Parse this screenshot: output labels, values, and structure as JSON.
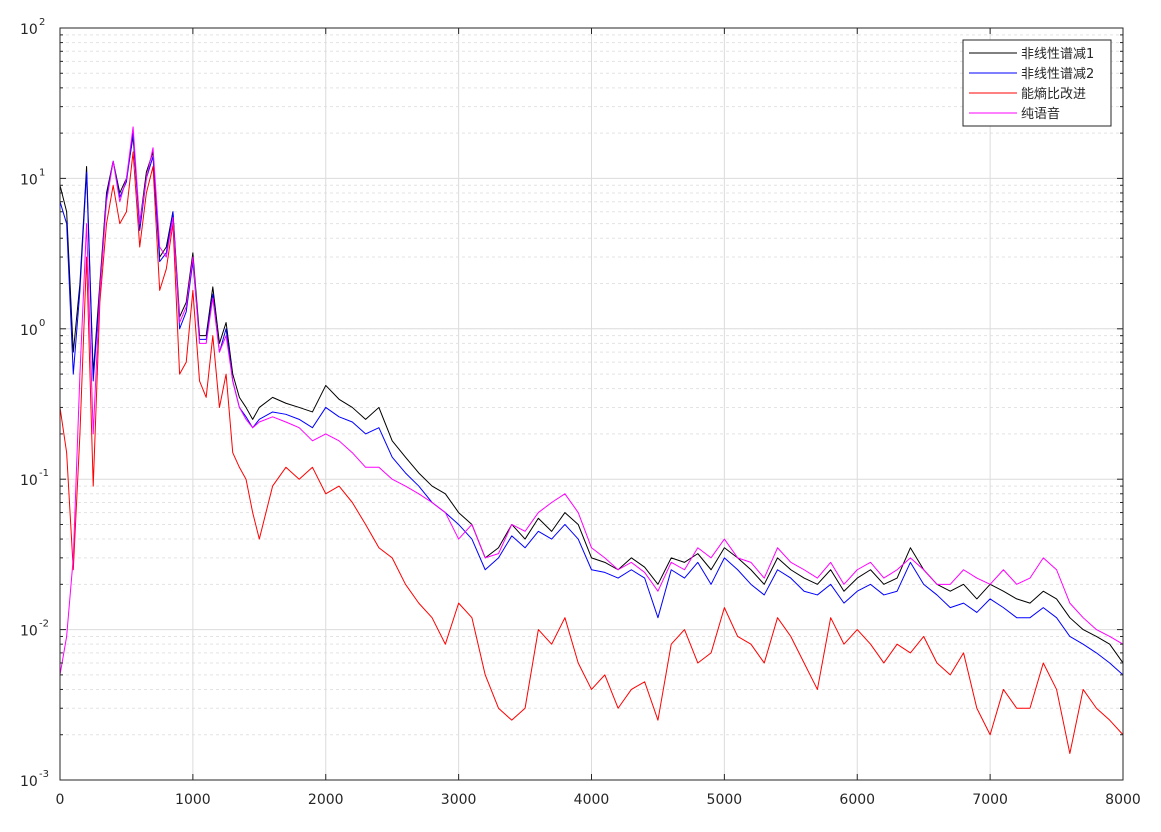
{
  "chart_data": {
    "type": "line",
    "title": "",
    "xlabel": "",
    "ylabel": "",
    "xscale": "linear",
    "yscale": "log",
    "xlim": [
      0,
      8000
    ],
    "ylim": [
      0.001,
      100
    ],
    "grid": true,
    "minor_grid": true,
    "legend_position": "top-right",
    "x_ticks": [
      0,
      1000,
      2000,
      3000,
      4000,
      5000,
      6000,
      7000,
      8000
    ],
    "x_tick_labels": [
      "0",
      "1000",
      "2000",
      "3000",
      "4000",
      "5000",
      "6000",
      "7000",
      "8000"
    ],
    "y_ticks": [
      0.001,
      0.01,
      0.1,
      1,
      10,
      100
    ],
    "y_tick_labels": [
      {
        "base": "10",
        "exp": "-3"
      },
      {
        "base": "10",
        "exp": "-2"
      },
      {
        "base": "10",
        "exp": "-1"
      },
      {
        "base": "10",
        "exp": "0"
      },
      {
        "base": "10",
        "exp": "1"
      },
      {
        "base": "10",
        "exp": "2"
      }
    ],
    "series": [
      {
        "name": "非线性谱减1",
        "color": "#000000",
        "x": [
          0,
          50,
          100,
          150,
          200,
          250,
          300,
          350,
          400,
          450,
          500,
          550,
          600,
          650,
          700,
          750,
          800,
          850,
          900,
          950,
          1000,
          1050,
          1100,
          1150,
          1200,
          1250,
          1300,
          1350,
          1400,
          1450,
          1500,
          1600,
          1700,
          1800,
          1900,
          2000,
          2100,
          2200,
          2300,
          2400,
          2500,
          2600,
          2700,
          2800,
          2900,
          3000,
          3100,
          3200,
          3300,
          3400,
          3500,
          3600,
          3700,
          3800,
          3900,
          4000,
          4100,
          4200,
          4300,
          4400,
          4500,
          4600,
          4700,
          4800,
          4900,
          5000,
          5100,
          5200,
          5300,
          5400,
          5500,
          5600,
          5700,
          5800,
          5900,
          6000,
          6100,
          6200,
          6300,
          6400,
          6500,
          6600,
          6700,
          6800,
          6900,
          7000,
          7100,
          7200,
          7300,
          7400,
          7500,
          7600,
          7700,
          7800,
          7900,
          8000
        ],
        "y": [
          9,
          6,
          0.7,
          2,
          12,
          0.5,
          2,
          8,
          13,
          8,
          10,
          19,
          5,
          11,
          15,
          3,
          3.5,
          6,
          1.2,
          1.5,
          3.2,
          0.9,
          0.9,
          1.9,
          0.8,
          1.1,
          0.5,
          0.35,
          0.3,
          0.25,
          0.3,
          0.35,
          0.32,
          0.3,
          0.28,
          0.42,
          0.34,
          0.3,
          0.25,
          0.3,
          0.18,
          0.14,
          0.11,
          0.09,
          0.08,
          0.06,
          0.05,
          0.03,
          0.035,
          0.05,
          0.04,
          0.055,
          0.045,
          0.06,
          0.05,
          0.03,
          0.028,
          0.025,
          0.03,
          0.026,
          0.02,
          0.03,
          0.028,
          0.032,
          0.025,
          0.035,
          0.03,
          0.025,
          0.02,
          0.03,
          0.025,
          0.022,
          0.02,
          0.025,
          0.018,
          0.022,
          0.025,
          0.02,
          0.022,
          0.035,
          0.025,
          0.02,
          0.018,
          0.02,
          0.016,
          0.02,
          0.018,
          0.016,
          0.015,
          0.018,
          0.016,
          0.012,
          0.01,
          0.009,
          0.008,
          0.006
        ]
      },
      {
        "name": "非线性谱减2",
        "color": "#0000ff",
        "x": [
          0,
          50,
          100,
          150,
          200,
          250,
          300,
          350,
          400,
          450,
          500,
          550,
          600,
          650,
          700,
          750,
          800,
          850,
          900,
          950,
          1000,
          1050,
          1100,
          1150,
          1200,
          1250,
          1300,
          1350,
          1400,
          1450,
          1500,
          1600,
          1700,
          1800,
          1900,
          2000,
          2100,
          2200,
          2300,
          2400,
          2500,
          2600,
          2700,
          2800,
          2900,
          3000,
          3100,
          3200,
          3300,
          3400,
          3500,
          3600,
          3700,
          3800,
          3900,
          4000,
          4100,
          4200,
          4300,
          4400,
          4500,
          4600,
          4700,
          4800,
          4900,
          5000,
          5100,
          5200,
          5300,
          5400,
          5500,
          5600,
          5700,
          5800,
          5900,
          6000,
          6100,
          6200,
          6300,
          6400,
          6500,
          6600,
          6700,
          6800,
          6900,
          7000,
          7100,
          7200,
          7300,
          7400,
          7500,
          7600,
          7700,
          7800,
          7900,
          8000
        ],
        "y": [
          7,
          5,
          0.5,
          1.8,
          11,
          0.45,
          1.8,
          7.5,
          13,
          7.5,
          9.5,
          20,
          4.5,
          10,
          14,
          2.8,
          3.2,
          6,
          1.0,
          1.3,
          2.8,
          0.85,
          0.85,
          1.7,
          0.7,
          1.0,
          0.45,
          0.3,
          0.26,
          0.22,
          0.25,
          0.28,
          0.27,
          0.25,
          0.22,
          0.3,
          0.26,
          0.24,
          0.2,
          0.22,
          0.14,
          0.11,
          0.09,
          0.07,
          0.06,
          0.05,
          0.04,
          0.025,
          0.03,
          0.042,
          0.035,
          0.045,
          0.04,
          0.05,
          0.04,
          0.025,
          0.024,
          0.022,
          0.025,
          0.022,
          0.012,
          0.025,
          0.022,
          0.028,
          0.02,
          0.03,
          0.025,
          0.02,
          0.017,
          0.025,
          0.022,
          0.018,
          0.017,
          0.02,
          0.015,
          0.018,
          0.02,
          0.017,
          0.018,
          0.028,
          0.02,
          0.017,
          0.014,
          0.015,
          0.013,
          0.016,
          0.014,
          0.012,
          0.012,
          0.014,
          0.012,
          0.009,
          0.008,
          0.007,
          0.006,
          0.005
        ]
      },
      {
        "name": "能熵比改进",
        "color": "#ff0000",
        "x": [
          0,
          50,
          100,
          150,
          200,
          250,
          300,
          350,
          400,
          450,
          500,
          550,
          600,
          650,
          700,
          750,
          800,
          850,
          900,
          950,
          1000,
          1050,
          1100,
          1150,
          1200,
          1250,
          1300,
          1350,
          1400,
          1450,
          1500,
          1600,
          1700,
          1800,
          1900,
          2000,
          2100,
          2200,
          2300,
          2400,
          2500,
          2600,
          2700,
          2800,
          2900,
          3000,
          3100,
          3200,
          3300,
          3400,
          3500,
          3600,
          3700,
          3800,
          3900,
          4000,
          4100,
          4200,
          4300,
          4400,
          4500,
          4600,
          4700,
          4800,
          4900,
          5000,
          5100,
          5200,
          5300,
          5400,
          5500,
          5600,
          5700,
          5800,
          5900,
          6000,
          6100,
          6200,
          6300,
          6400,
          6500,
          6600,
          6700,
          6800,
          6900,
          7000,
          7100,
          7200,
          7300,
          7400,
          7500,
          7600,
          7700,
          7800,
          7900,
          8000
        ],
        "y": [
          0.3,
          0.15,
          0.025,
          0.2,
          3,
          0.09,
          1.5,
          5,
          9,
          5,
          6,
          15,
          3.5,
          8,
          12,
          1.8,
          2.5,
          5,
          0.5,
          0.6,
          1.8,
          0.45,
          0.35,
          0.9,
          0.3,
          0.5,
          0.15,
          0.12,
          0.1,
          0.06,
          0.04,
          0.09,
          0.12,
          0.1,
          0.12,
          0.08,
          0.09,
          0.07,
          0.05,
          0.035,
          0.03,
          0.02,
          0.015,
          0.012,
          0.008,
          0.015,
          0.012,
          0.005,
          0.003,
          0.0025,
          0.003,
          0.01,
          0.008,
          0.012,
          0.006,
          0.004,
          0.005,
          0.003,
          0.004,
          0.0045,
          0.0025,
          0.008,
          0.01,
          0.006,
          0.007,
          0.014,
          0.009,
          0.008,
          0.006,
          0.012,
          0.009,
          0.006,
          0.004,
          0.012,
          0.008,
          0.01,
          0.008,
          0.006,
          0.008,
          0.007,
          0.009,
          0.006,
          0.005,
          0.007,
          0.003,
          0.002,
          0.004,
          0.003,
          0.003,
          0.006,
          0.004,
          0.0015,
          0.004,
          0.003,
          0.0025,
          0.002
        ]
      },
      {
        "name": "纯语音",
        "color": "#ff00ff",
        "x": [
          0,
          50,
          100,
          150,
          200,
          250,
          300,
          350,
          400,
          450,
          500,
          550,
          600,
          650,
          700,
          750,
          800,
          850,
          900,
          950,
          1000,
          1050,
          1100,
          1150,
          1200,
          1250,
          1300,
          1350,
          1400,
          1450,
          1500,
          1600,
          1700,
          1800,
          1900,
          2000,
          2100,
          2200,
          2300,
          2400,
          2500,
          2600,
          2700,
          2800,
          2900,
          3000,
          3100,
          3200,
          3300,
          3400,
          3500,
          3600,
          3700,
          3800,
          3900,
          4000,
          4100,
          4200,
          4300,
          4400,
          4500,
          4600,
          4700,
          4800,
          4900,
          5000,
          5100,
          5200,
          5300,
          5400,
          5500,
          5600,
          5700,
          5800,
          5900,
          6000,
          6100,
          6200,
          6300,
          6400,
          6500,
          6600,
          6700,
          6800,
          6900,
          7000,
          7100,
          7200,
          7300,
          7400,
          7500,
          7600,
          7700,
          7800,
          7900,
          8000
        ],
        "y": [
          0.005,
          0.009,
          0.03,
          0.5,
          5,
          0.2,
          1.8,
          7,
          13,
          7,
          10,
          22,
          5,
          10,
          16,
          3.5,
          3,
          5.5,
          1.1,
          1.4,
          3,
          0.8,
          0.8,
          1.6,
          0.7,
          0.9,
          0.45,
          0.3,
          0.25,
          0.22,
          0.24,
          0.26,
          0.24,
          0.22,
          0.18,
          0.2,
          0.18,
          0.15,
          0.12,
          0.12,
          0.1,
          0.09,
          0.08,
          0.07,
          0.06,
          0.04,
          0.05,
          0.03,
          0.032,
          0.05,
          0.045,
          0.06,
          0.07,
          0.08,
          0.06,
          0.035,
          0.03,
          0.025,
          0.028,
          0.024,
          0.018,
          0.028,
          0.025,
          0.035,
          0.03,
          0.04,
          0.03,
          0.028,
          0.022,
          0.035,
          0.028,
          0.025,
          0.022,
          0.028,
          0.02,
          0.025,
          0.028,
          0.022,
          0.025,
          0.03,
          0.025,
          0.02,
          0.02,
          0.025,
          0.022,
          0.02,
          0.025,
          0.02,
          0.022,
          0.03,
          0.025,
          0.015,
          0.012,
          0.01,
          0.009,
          0.008
        ]
      }
    ]
  }
}
